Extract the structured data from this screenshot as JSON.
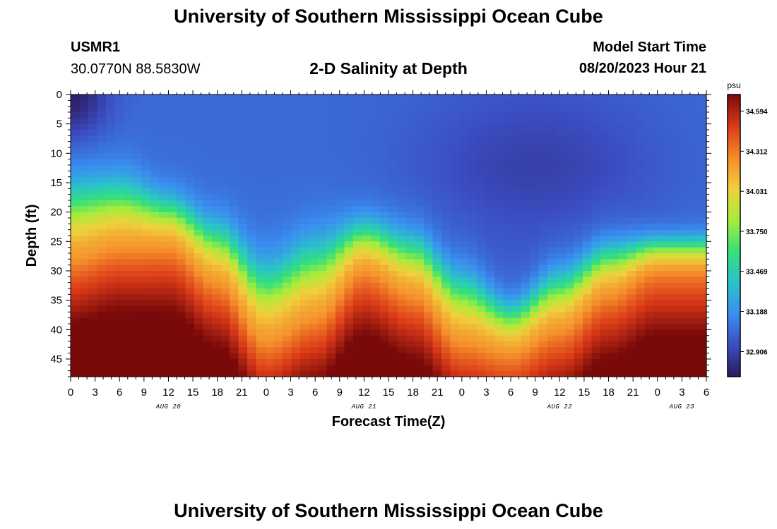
{
  "header": {
    "title": "University of Southern Mississippi Ocean Cube",
    "station_id": "USMR1",
    "station_coords": "30.0770N  88.5830W",
    "run_label": "Model Start Time",
    "run_time": "08/20/2023 Hour 21",
    "footer_title": "University of Southern Mississippi Ocean Cube"
  },
  "chart_data": {
    "type": "heatmap",
    "title": "2-D Salinity at Depth",
    "xlabel": "Forecast Time(Z)",
    "ylabel": "Depth (ft)",
    "x_tick_labels": [
      "0",
      "3",
      "6",
      "9",
      "12",
      "15",
      "18",
      "21",
      "0",
      "3",
      "6",
      "9",
      "12",
      "15",
      "18",
      "21",
      "0",
      "3",
      "6",
      "9",
      "12",
      "15",
      "18",
      "21",
      "0",
      "3",
      "6"
    ],
    "x_tick_hours": [
      0,
      3,
      6,
      9,
      12,
      15,
      18,
      21,
      24,
      27,
      30,
      33,
      36,
      39,
      42,
      45,
      48,
      51,
      54,
      57,
      60,
      63,
      66,
      69,
      72,
      75,
      78
    ],
    "date_labels": [
      {
        "text": "AUG 20",
        "hour": 12
      },
      {
        "text": "AUG 21",
        "hour": 36
      },
      {
        "text": "AUG 22",
        "hour": 60
      },
      {
        "text": "AUG 23",
        "hour": 75
      }
    ],
    "xlim": [
      0,
      78
    ],
    "y_tick_labels": [
      "0",
      "5",
      "10",
      "15",
      "20",
      "25",
      "30",
      "35",
      "40",
      "45"
    ],
    "y_tick_values": [
      0,
      5,
      10,
      15,
      20,
      25,
      30,
      35,
      40,
      45
    ],
    "ylim": [
      0,
      48
    ],
    "y_inverted": true,
    "colorbar": {
      "unit": "psu",
      "ticks": [
        "34.594",
        "34.312",
        "34.031",
        "33.750",
        "33.469",
        "33.188",
        "32.906"
      ],
      "tick_values": [
        34.594,
        34.312,
        34.031,
        33.75,
        33.469,
        33.188,
        32.906
      ],
      "range": [
        32.73,
        34.71
      ],
      "colormap": [
        "#2b1a5e",
        "#3b4cc0",
        "#3a8ef0",
        "#2ac4c8",
        "#35e07a",
        "#a8ec3a",
        "#f0d03c",
        "#f58a2a",
        "#d93a17",
        "#7a0a0a"
      ]
    },
    "thermocline_depth_ft": [
      {
        "hour": 0,
        "top": 10,
        "bottom": 28
      },
      {
        "hour": 6,
        "top": 10,
        "bottom": 26
      },
      {
        "hour": 12,
        "top": 14,
        "bottom": 26
      },
      {
        "hour": 18,
        "top": 18,
        "bottom": 32
      },
      {
        "hour": 24,
        "top": 24,
        "bottom": 42
      },
      {
        "hour": 30,
        "top": 20,
        "bottom": 38
      },
      {
        "hour": 36,
        "top": 18,
        "bottom": 30
      },
      {
        "hour": 42,
        "top": 20,
        "bottom": 34
      },
      {
        "hour": 48,
        "top": 26,
        "bottom": 42
      },
      {
        "hour": 54,
        "top": 32,
        "bottom": 44
      },
      {
        "hour": 60,
        "top": 26,
        "bottom": 40
      },
      {
        "hour": 66,
        "top": 22,
        "bottom": 34
      },
      {
        "hour": 72,
        "top": 22,
        "bottom": 30
      },
      {
        "hour": 78,
        "top": 22,
        "bottom": 30
      }
    ],
    "surface_min": {
      "hour": 0,
      "depth_ft": 0,
      "value": 32.75
    },
    "bottom_max": {
      "value": 34.68
    }
  }
}
